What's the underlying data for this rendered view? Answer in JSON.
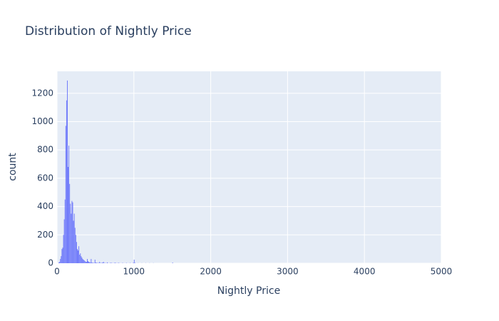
{
  "chart_data": {
    "type": "histogram",
    "title": "Distribution of Nightly Price",
    "x_label": "Nightly Price",
    "y_label": "count",
    "color": "#636efa",
    "bins": [
      0,
      10,
      20,
      30,
      40,
      50,
      60,
      70,
      80,
      90,
      100,
      110,
      120,
      130,
      140,
      150,
      160,
      170,
      180,
      190,
      200,
      210,
      220,
      230,
      240,
      250,
      260,
      270,
      280,
      290,
      300,
      310,
      320,
      330,
      340,
      350,
      360,
      370,
      380,
      390,
      400,
      410,
      420,
      430,
      440,
      450,
      460,
      470,
      480,
      490,
      500,
      510,
      520,
      530,
      540,
      550,
      560,
      570,
      580,
      590,
      600,
      610,
      620,
      630,
      640,
      650,
      660,
      670,
      680,
      690,
      700,
      710,
      720,
      730,
      740,
      750,
      760,
      770,
      780,
      790,
      800,
      810,
      820,
      830,
      840,
      850,
      860,
      870,
      880,
      890,
      900,
      910,
      920,
      930,
      940,
      950,
      960,
      970,
      980,
      990,
      1000,
      1010,
      1020,
      1030,
      1040,
      1050,
      1060,
      1070,
      1080,
      1090,
      1100,
      1110,
      1120,
      1130,
      1140,
      1150,
      1160,
      1170,
      1180,
      1190,
      1200,
      1210,
      1220,
      1230,
      1240,
      1250,
      1260,
      1270,
      1280,
      1290,
      1300,
      1310,
      1320,
      1330,
      1340,
      1350,
      1360,
      1370,
      1380,
      1390,
      1400,
      1410,
      1420,
      1430,
      1440,
      1450,
      1460,
      1470,
      1480,
      1490,
      1500,
      1510
    ],
    "values": [
      0,
      0,
      5,
      10,
      30,
      50,
      100,
      110,
      200,
      310,
      450,
      970,
      1150,
      1290,
      680,
      830,
      560,
      420,
      350,
      440,
      430,
      300,
      350,
      250,
      200,
      150,
      100,
      90,
      120,
      60,
      70,
      50,
      40,
      30,
      25,
      20,
      15,
      10,
      10,
      30,
      15,
      10,
      8,
      5,
      30,
      5,
      3,
      3,
      2,
      25,
      5,
      3,
      2,
      2,
      2,
      10,
      2,
      2,
      2,
      5,
      10,
      2,
      2,
      1,
      1,
      6,
      1,
      1,
      1,
      2,
      4,
      1,
      1,
      1,
      1,
      5,
      1,
      1,
      1,
      1,
      3,
      1,
      0,
      1,
      0,
      3,
      0,
      1,
      0,
      1,
      2,
      0,
      1,
      0,
      1,
      2,
      0,
      0,
      1,
      3,
      25,
      2,
      1,
      0,
      0,
      1,
      0,
      0,
      0,
      0,
      1,
      0,
      0,
      0,
      0,
      1,
      0,
      0,
      0,
      0,
      1,
      0,
      0,
      0,
      0,
      1,
      0,
      0,
      0,
      0,
      0,
      0,
      0,
      0,
      0,
      0,
      0,
      0,
      0,
      0,
      0,
      0,
      0,
      0,
      0,
      0,
      0,
      0,
      0,
      0,
      5
    ],
    "xlim": [
      0,
      5000
    ],
    "xticks": [
      0,
      1000,
      2000,
      3000,
      4000,
      5000
    ],
    "ylim": [
      0,
      1355
    ],
    "yticks": [
      0,
      200,
      400,
      600,
      800,
      1000,
      1200
    ],
    "grid": true
  }
}
